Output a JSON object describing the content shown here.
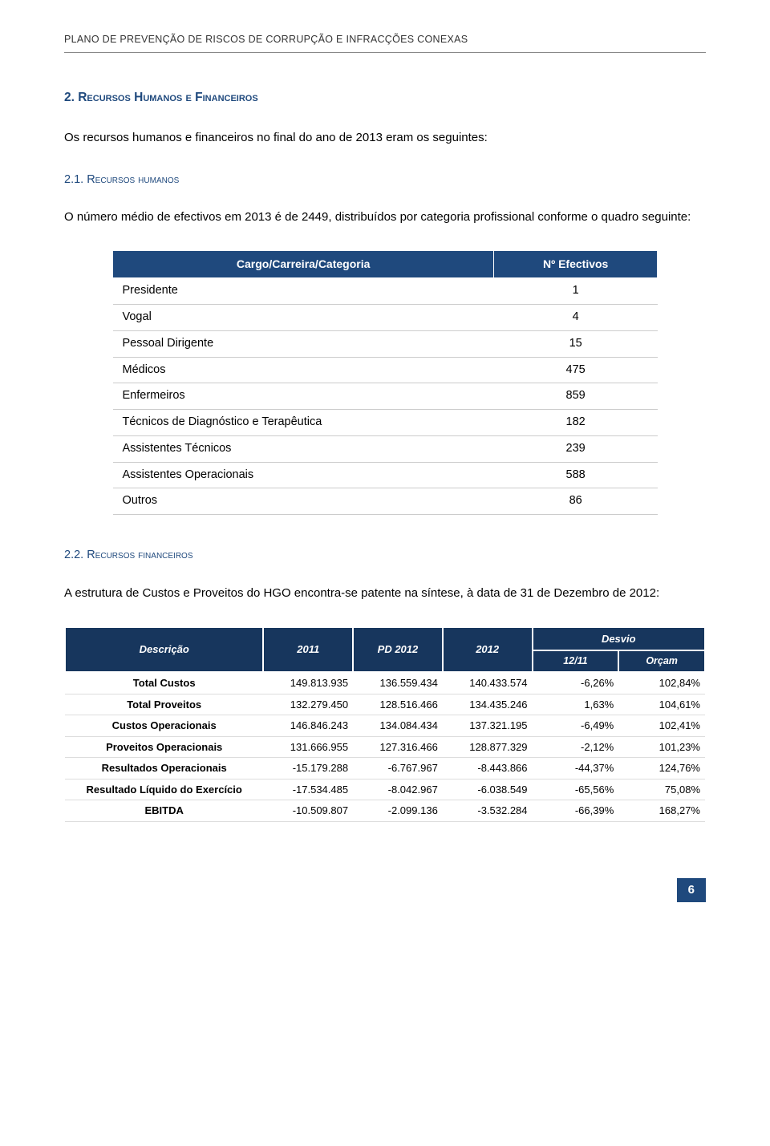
{
  "header_title": "PLANO DE PREVENÇÃO DE RISCOS DE CORRUPÇÃO E INFRACÇÕES CONEXAS",
  "section2": {
    "heading": "2. Recursos Humanos e Financeiros",
    "intro": "Os recursos humanos e financeiros no final do ano de 2013 eram os seguintes:"
  },
  "section21": {
    "heading": "2.1. Recursos humanos",
    "body": "O número médio de efectivos em 2013 é de 2449, distribuídos por categoria profissional conforme o quadro seguinte:"
  },
  "staff_table": {
    "header_bg": "#1f497d",
    "header_left": "Cargo/Carreira/Categoria",
    "header_right": "Nº Efectivos",
    "rows": [
      {
        "label": "Presidente",
        "value": "1"
      },
      {
        "label": "Vogal",
        "value": "4"
      },
      {
        "label": "Pessoal Dirigente",
        "value": "15"
      },
      {
        "label": "Médicos",
        "value": "475"
      },
      {
        "label": "Enfermeiros",
        "value": "859"
      },
      {
        "label": "Técnicos de Diagnóstico e Terapêutica",
        "value": "182"
      },
      {
        "label": "Assistentes Técnicos",
        "value": "239"
      },
      {
        "label": "Assistentes Operacionais",
        "value": "588"
      },
      {
        "label": "Outros",
        "value": "86"
      }
    ]
  },
  "section22": {
    "heading": "2.2. Recursos financeiros",
    "body": "A estrutura de Custos e Proveitos do HGO encontra-se patente na síntese, à data de 31 de Dezembro de 2012:"
  },
  "fin_table": {
    "header_bg": "#17365d",
    "headers": {
      "desc": "Descrição",
      "y2011": "2011",
      "pd2012": "PD 2012",
      "y2012": "2012",
      "desvio": "Desvio",
      "sub1": "12/11",
      "sub2": "Orçam"
    },
    "rows": [
      {
        "label": "Total Custos",
        "c1": "149.813.935",
        "c2": "136.559.434",
        "c3": "140.433.574",
        "c4": "-6,26%",
        "c5": "102,84%"
      },
      {
        "label": "Total Proveitos",
        "c1": "132.279.450",
        "c2": "128.516.466",
        "c3": "134.435.246",
        "c4": "1,63%",
        "c5": "104,61%"
      },
      {
        "label": "Custos Operacionais",
        "c1": "146.846.243",
        "c2": "134.084.434",
        "c3": "137.321.195",
        "c4": "-6,49%",
        "c5": "102,41%"
      },
      {
        "label": "Proveitos Operacionais",
        "c1": "131.666.955",
        "c2": "127.316.466",
        "c3": "128.877.329",
        "c4": "-2,12%",
        "c5": "101,23%"
      },
      {
        "label": "Resultados Operacionais",
        "c1": "-15.179.288",
        "c2": "-6.767.967",
        "c3": "-8.443.866",
        "c4": "-44,37%",
        "c5": "124,76%"
      },
      {
        "label": "Resultado Líquido do Exercício",
        "c1": "-17.534.485",
        "c2": "-8.042.967",
        "c3": "-6.038.549",
        "c4": "-65,56%",
        "c5": "75,08%"
      },
      {
        "label": "EBITDA",
        "c1": "-10.509.807",
        "c2": "-2.099.136",
        "c3": "-3.532.284",
        "c4": "-66,39%",
        "c5": "168,27%"
      }
    ]
  },
  "page_number": "6",
  "page_num_bg": "#1f497d"
}
